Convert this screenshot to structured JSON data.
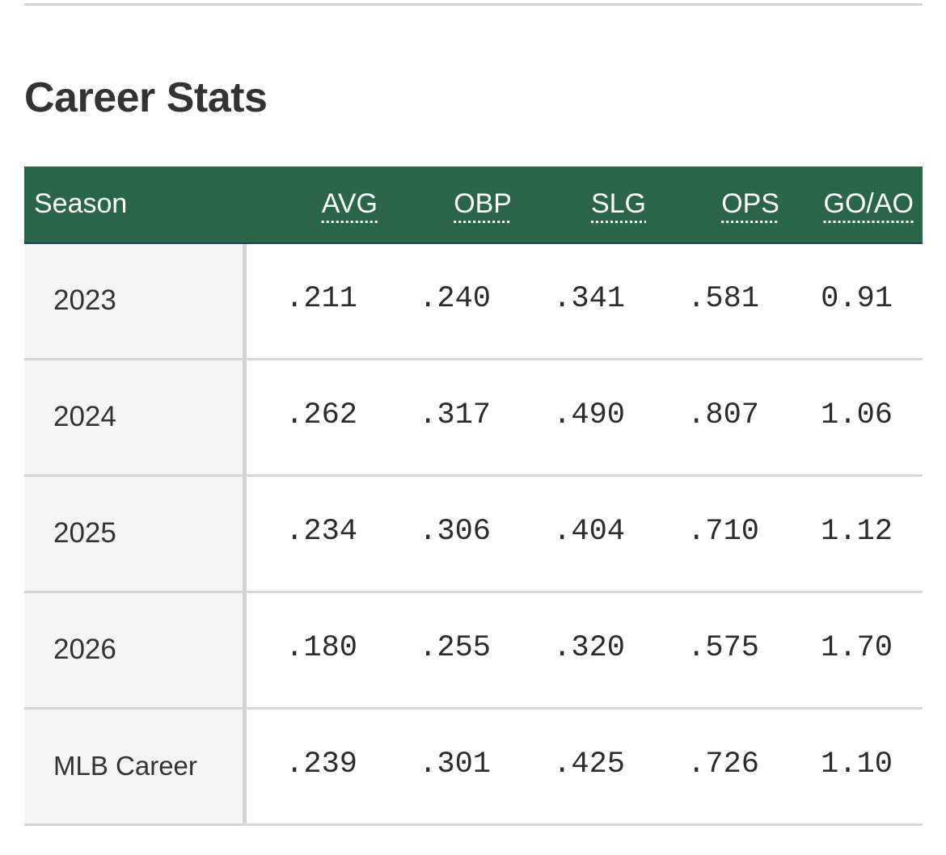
{
  "title": "Career Stats",
  "table": {
    "columns": [
      "Season",
      "AVG",
      "OBP",
      "SLG",
      "OPS",
      "GO/AO"
    ],
    "rows": [
      {
        "season": "2023",
        "values": [
          ".211",
          ".240",
          ".341",
          ".581",
          "0.91"
        ]
      },
      {
        "season": "2024",
        "values": [
          ".262",
          ".317",
          ".490",
          ".807",
          "1.06"
        ]
      },
      {
        "season": "2025",
        "values": [
          ".234",
          ".306",
          ".404",
          ".710",
          "1.12"
        ]
      },
      {
        "season": "2026",
        "values": [
          ".180",
          ".255",
          ".320",
          ".575",
          "1.70"
        ]
      },
      {
        "season": "MLB Career",
        "values": [
          ".239",
          ".301",
          ".425",
          ".726",
          "1.10"
        ]
      }
    ]
  },
  "colors": {
    "header_bg": "#2a6549",
    "season_cell_bg": "#f4f4f4"
  }
}
